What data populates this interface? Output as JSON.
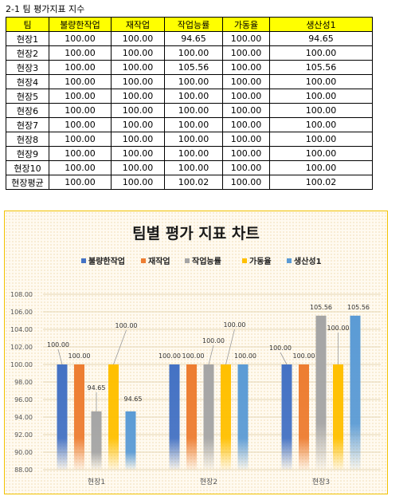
{
  "sheet_title": "2-1 팀 평가지표 지수",
  "table": {
    "headers": [
      "팀",
      "불량한작업",
      "재작업",
      "작업능률",
      "가동율",
      "생산성1"
    ],
    "rows": [
      [
        "현장1",
        "100.00",
        "100.00",
        "94.65",
        "100.00",
        "94.65"
      ],
      [
        "현장2",
        "100.00",
        "100.00",
        "100.00",
        "100.00",
        "100.00"
      ],
      [
        "현장3",
        "100.00",
        "100.00",
        "105.56",
        "100.00",
        "105.56"
      ],
      [
        "현장4",
        "100.00",
        "100.00",
        "100.00",
        "100.00",
        "100.00"
      ],
      [
        "현장5",
        "100.00",
        "100.00",
        "100.00",
        "100.00",
        "100.00"
      ],
      [
        "현장6",
        "100.00",
        "100.00",
        "100.00",
        "100.00",
        "100.00"
      ],
      [
        "현장7",
        "100.00",
        "100.00",
        "100.00",
        "100.00",
        "100.00"
      ],
      [
        "현장8",
        "100.00",
        "100.00",
        "100.00",
        "100.00",
        "100.00"
      ],
      [
        "현장9",
        "100.00",
        "100.00",
        "100.00",
        "100.00",
        "100.00"
      ],
      [
        "현장10",
        "100.00",
        "100.00",
        "100.00",
        "100.00",
        "100.00"
      ],
      [
        "현장평균",
        "100.00",
        "100.00",
        "100.02",
        "100.00",
        "100.02"
      ]
    ]
  },
  "chart_data": {
    "type": "bar",
    "title": "팀별 평가 지표 차트",
    "categories": [
      "현장1",
      "현장2",
      "현장3"
    ],
    "series": [
      {
        "name": "불량한작업",
        "color": "#4472c4",
        "values": [
          100.0,
          100.0,
          100.0
        ]
      },
      {
        "name": "재작업",
        "color": "#ed7d31",
        "values": [
          100.0,
          100.0,
          100.0
        ]
      },
      {
        "name": "작업능률",
        "color": "#a5a5a5",
        "values": [
          94.65,
          100.0,
          105.56
        ]
      },
      {
        "name": "가동율",
        "color": "#ffc000",
        "values": [
          100.0,
          100.0,
          100.0
        ]
      },
      {
        "name": "생산성1",
        "color": "#5b9bd5",
        "values": [
          94.65,
          100.0,
          105.56
        ]
      }
    ],
    "ylim": [
      88,
      108
    ],
    "yticks": [
      "88.00",
      "90.00",
      "92.00",
      "94.00",
      "96.00",
      "98.00",
      "100.00",
      "102.00",
      "104.00",
      "106.00",
      "108.00"
    ],
    "data_labels": true,
    "grid": true,
    "legend_position": "top"
  }
}
